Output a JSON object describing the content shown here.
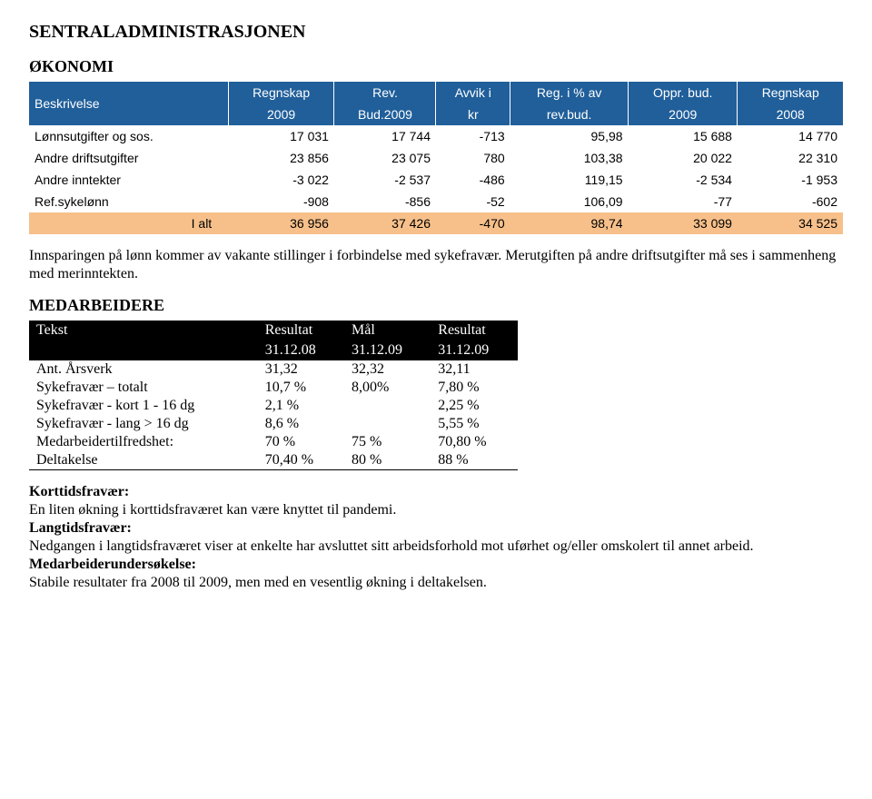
{
  "title": "SENTRALADMINISTRASJONEN",
  "section_econ": "ØKONOMI",
  "t1": {
    "headers": {
      "c0": "Beskrivelse",
      "c1a": "Regnskap",
      "c1b": "2009",
      "c2a": "Rev.",
      "c2b": "Bud.2009",
      "c3a": "Avvik i",
      "c3b": "kr",
      "c4a": "Reg. i % av",
      "c4b": "rev.bud.",
      "c5a": "Oppr. bud.",
      "c5b": "2009",
      "c6a": "Regnskap",
      "c6b": "2008"
    },
    "rows": [
      {
        "label": "Lønnsutgifter og sos.",
        "v": [
          "17 031",
          "17 744",
          "-713",
          "95,98",
          "15 688",
          "14 770"
        ]
      },
      {
        "label": "Andre driftsutgifter",
        "v": [
          "23 856",
          "23 075",
          "780",
          "103,38",
          "20 022",
          "22 310"
        ]
      },
      {
        "label": "Andre inntekter",
        "v": [
          "-3 022",
          "-2 537",
          "-486",
          "119,15",
          "-2 534",
          "-1 953"
        ]
      },
      {
        "label": "Ref.sykelønn",
        "v": [
          "-908",
          "-856",
          "-52",
          "106,09",
          "-77",
          "-602"
        ]
      }
    ],
    "total": {
      "label": "I alt",
      "v": [
        "36 956",
        "37 426",
        "-470",
        "98,74",
        "33 099",
        "34 525"
      ]
    }
  },
  "para1": "Innsparingen på lønn kommer av vakante stillinger i forbindelse med sykefravær. Merutgiften på andre driftsutgifter må ses i sammenheng med merinntekten.",
  "section_med": "MEDARBEIDERE",
  "t2": {
    "headers": {
      "c0": "Tekst",
      "c1a": "Resultat",
      "c1b": "31.12.08",
      "c2a": "Mål",
      "c2b": "31.12.09",
      "c3a": "Resultat",
      "c3b": "31.12.09"
    },
    "rows": [
      {
        "label": "Ant. Årsverk",
        "v": [
          "31,32",
          "32,32",
          "32,11"
        ]
      },
      {
        "label": "Sykefravær – totalt",
        "v": [
          "10,7 %",
          "8,00%",
          "7,80 %"
        ]
      },
      {
        "label": "Sykefravær - kort 1 - 16 dg",
        "v": [
          "2,1 %",
          "",
          "2,25 %"
        ]
      },
      {
        "label": "Sykefravær - lang  > 16 dg",
        "v": [
          "8,6 %",
          "",
          "5,55 %"
        ]
      },
      {
        "label": "Medarbeidertilfredshet:",
        "v": [
          "70 %",
          "75 %",
          "70,80 %"
        ]
      },
      {
        "label": "Deltakelse",
        "v": [
          "70,40 %",
          "80 %",
          "88 %"
        ]
      }
    ]
  },
  "kt_label": "Korttidsfravær:",
  "kt_text": "En liten økning i korttidsfraværet kan være knyttet til pandemi.",
  "lt_label": "Langtidsfravær:",
  "lt_text": "Nedgangen i langtidsfraværet viser at enkelte har avsluttet sitt arbeidsforhold mot uførhet og/eller omskolert til annet arbeid.",
  "mu_label": "Medarbeiderundersøkelse:",
  "mu_text": "Stabile resultater fra 2008 til 2009, men med en vesentlig økning i deltakelsen."
}
